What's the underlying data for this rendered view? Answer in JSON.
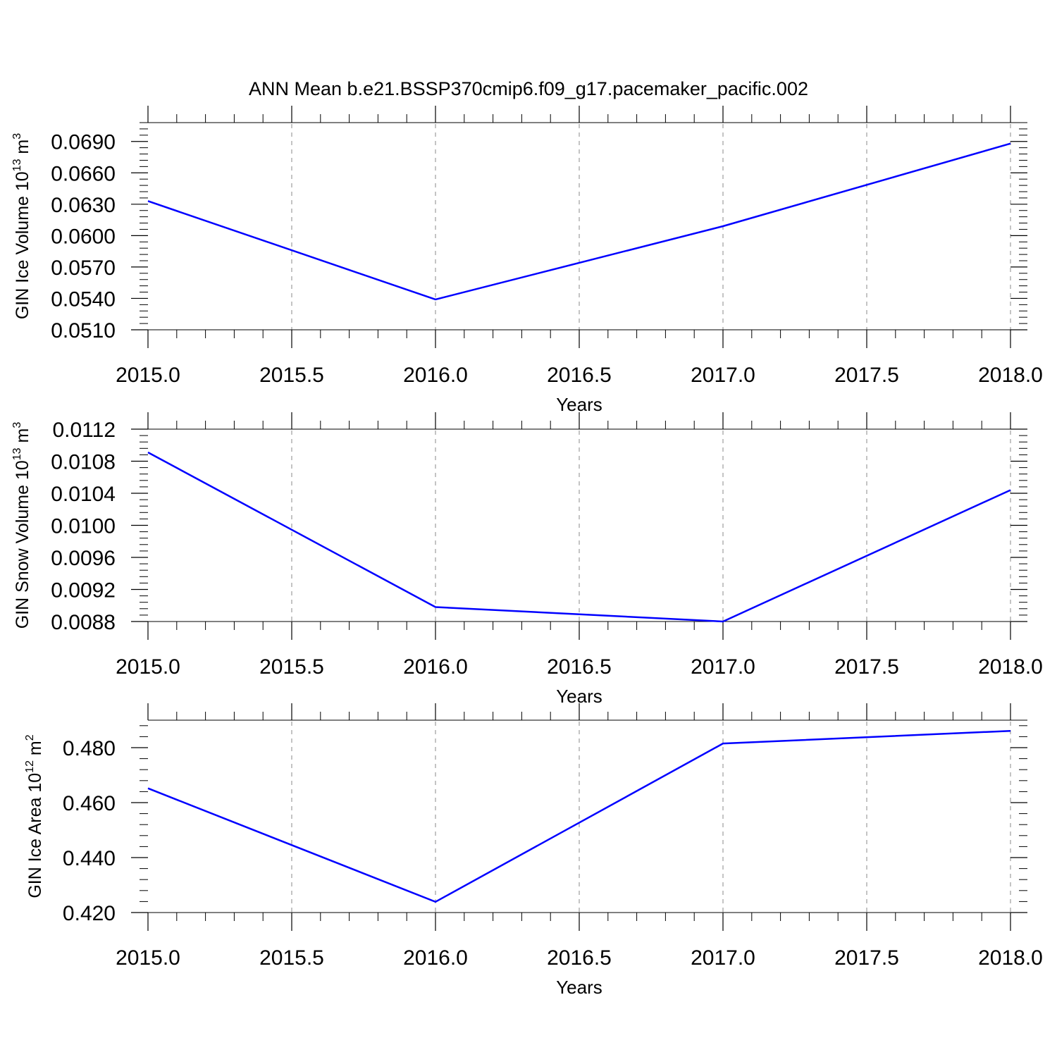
{
  "figure": {
    "title": "ANN Mean b.e21.BSSP370cmip6.f09_g17.pacemaker_pacific.002"
  },
  "chart_data": [
    {
      "type": "line",
      "xlabel": "Years",
      "ylabel": "GIN Ice Volume 10",
      "ylabel_exponent": "13",
      "ylabel_unit": " m",
      "ylabel_unit_exponent": "3",
      "xlim": [
        2015.0,
        2018.0
      ],
      "ylim": [
        0.051,
        0.0708
      ],
      "x_ticks": [
        "2015.0",
        "2015.5",
        "2016.0",
        "2016.5",
        "2017.0",
        "2017.5",
        "2018.0"
      ],
      "y_ticks": [
        "0.0510",
        "0.0540",
        "0.0570",
        "0.0600",
        "0.0630",
        "0.0660",
        "0.0690"
      ],
      "grid": "vertical dashed",
      "series": [
        {
          "x": [
            2015,
            2016,
            2017,
            2018
          ],
          "y": [
            0.0633,
            0.0539,
            0.0609,
            0.0688
          ],
          "color": "#0000ff"
        }
      ]
    },
    {
      "type": "line",
      "xlabel": "Years",
      "ylabel": "GIN Snow Volume 10",
      "ylabel_exponent": "13",
      "ylabel_unit": " m",
      "ylabel_unit_exponent": "3",
      "xlim": [
        2015.0,
        2018.0
      ],
      "ylim": [
        0.0088,
        0.0112
      ],
      "x_ticks": [
        "2015.0",
        "2015.5",
        "2016.0",
        "2016.5",
        "2017.0",
        "2017.5",
        "2018.0"
      ],
      "y_ticks": [
        "0.0088",
        "0.0092",
        "0.0096",
        "0.0100",
        "0.0104",
        "0.0108",
        "0.0112"
      ],
      "grid": "vertical dashed",
      "series": [
        {
          "x": [
            2015,
            2016,
            2017,
            2018
          ],
          "y": [
            0.01091,
            0.00898,
            0.0088,
            0.01044
          ],
          "color": "#0000ff"
        }
      ]
    },
    {
      "type": "line",
      "xlabel": "Years",
      "ylabel": "GIN Ice Area 10",
      "ylabel_exponent": "12",
      "ylabel_unit": " m",
      "ylabel_unit_exponent": "2",
      "xlim": [
        2015.0,
        2018.0
      ],
      "ylim": [
        0.42,
        0.49
      ],
      "x_ticks": [
        "2015.0",
        "2015.5",
        "2016.0",
        "2016.5",
        "2017.0",
        "2017.5",
        "2018.0"
      ],
      "y_ticks": [
        "0.420",
        "0.440",
        "0.460",
        "0.480"
      ],
      "grid": "vertical dashed",
      "series": [
        {
          "x": [
            2015,
            2016,
            2017,
            2018
          ],
          "y": [
            0.4652,
            0.4239,
            0.4815,
            0.4861
          ],
          "color": "#0000ff"
        }
      ]
    }
  ]
}
